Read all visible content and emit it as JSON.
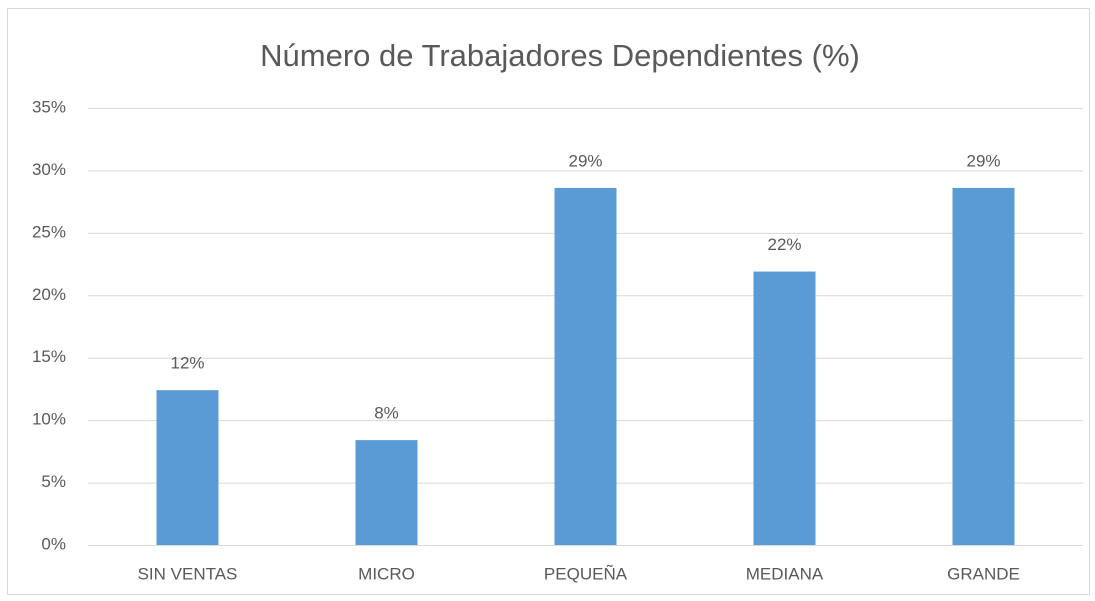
{
  "chart_data": {
    "type": "bar",
    "title": "Número de Trabajadores Dependientes (%)",
    "categories": [
      "SIN VENTAS",
      "MICRO",
      "PEQUEÑA",
      "MEDIANA",
      "GRANDE"
    ],
    "values": [
      12.4,
      8.4,
      28.6,
      21.9,
      28.6
    ],
    "value_labels": [
      "12%",
      "8%",
      "29%",
      "22%",
      "29%"
    ],
    "color": "#5b9bd5",
    "ylim": [
      0,
      35
    ],
    "yticks": [
      {
        "value": 0,
        "label": "0%"
      },
      {
        "value": 5,
        "label": "5%"
      },
      {
        "value": 10,
        "label": "10%"
      },
      {
        "value": 15,
        "label": "15%"
      },
      {
        "value": 20,
        "label": "20%"
      },
      {
        "value": 25,
        "label": "25%"
      },
      {
        "value": 30,
        "label": "30%"
      },
      {
        "value": 35,
        "label": "35%"
      }
    ],
    "grid": true
  }
}
